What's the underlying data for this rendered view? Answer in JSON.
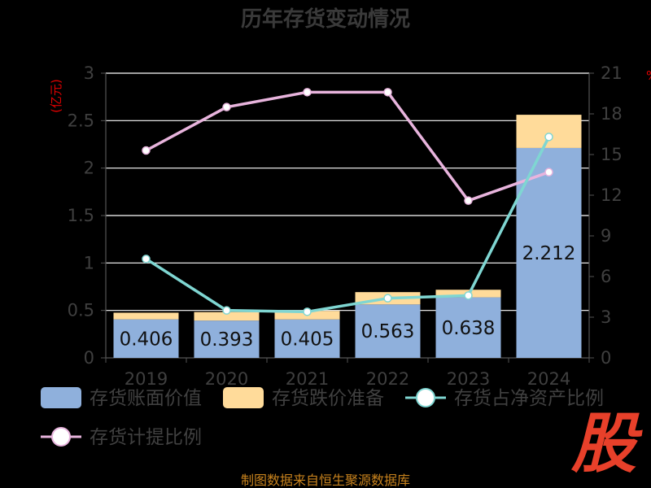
{
  "title": "历年存货变动情况",
  "left_unit": "(亿元)",
  "right_unit": "%",
  "source": "制图数据来自恒生聚源数据库",
  "logo_text": "股",
  "colors": {
    "book": "#8fb0dc",
    "provision": "#ffdb9a",
    "net_ratio": "#7fd6d2",
    "provision_ratio": "#e8b4dd",
    "grid": "#ffffff",
    "axis": "#555555"
  },
  "chart_data": {
    "type": "bar",
    "title": "历年存货变动情况",
    "categories": [
      "2019",
      "2020",
      "2021",
      "2022",
      "2023",
      "2024"
    ],
    "left_axis": {
      "label": "(亿元)",
      "min": 0,
      "max": 3,
      "ticks": [
        "0",
        "0.5",
        "1",
        "1.5",
        "2",
        "2.5",
        "3"
      ]
    },
    "right_axis": {
      "label": "%",
      "min": 0,
      "max": 21,
      "ticks": [
        "0",
        "3",
        "6",
        "9",
        "12",
        "15",
        "18",
        "21"
      ]
    },
    "series": [
      {
        "name": "存货账面价值",
        "type": "bar",
        "stack": "inventory",
        "axis": "left",
        "values": [
          0.406,
          0.393,
          0.405,
          0.563,
          0.638,
          2.212
        ],
        "labels": [
          "0.406",
          "0.393",
          "0.405",
          "0.563",
          "0.638",
          "2.212"
        ]
      },
      {
        "name": "存货跌价准备",
        "type": "bar",
        "stack": "inventory",
        "axis": "left",
        "values": [
          0.07,
          0.09,
          0.09,
          0.13,
          0.08,
          0.35
        ]
      },
      {
        "name": "存货占净资产比例",
        "type": "line",
        "axis": "right",
        "values": [
          7.3,
          3.5,
          3.4,
          4.4,
          4.6,
          16.3
        ]
      },
      {
        "name": "存货计提比例",
        "type": "line",
        "axis": "right",
        "values": [
          15.3,
          18.5,
          19.6,
          19.6,
          11.6,
          13.7
        ]
      }
    ],
    "grid": true,
    "legend_position": "bottom"
  }
}
